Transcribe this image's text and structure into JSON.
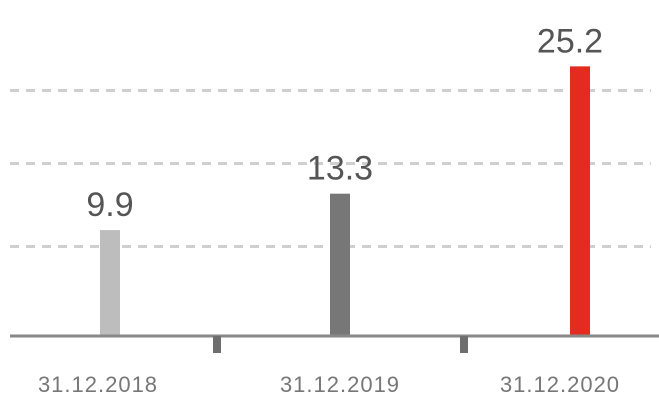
{
  "chart_data": {
    "type": "bar",
    "categories": [
      "31.12.2018",
      "31.12.2019",
      "31.12.2020"
    ],
    "values": [
      9.9,
      13.3,
      25.2
    ],
    "data_labels": [
      "9.9",
      "13.3",
      "25.2"
    ],
    "bar_colors": [
      "#bdbdbd",
      "#777777",
      "#e32b20"
    ],
    "title": "",
    "xlabel": "",
    "ylabel": "",
    "ylim": [
      0,
      27
    ],
    "gridlines": [
      8.4,
      16.2,
      23.0
    ],
    "grid": true,
    "grid_style": "dashed",
    "legend": "none",
    "axis_color": "#888888",
    "grid_color": "#cfcfcf"
  }
}
